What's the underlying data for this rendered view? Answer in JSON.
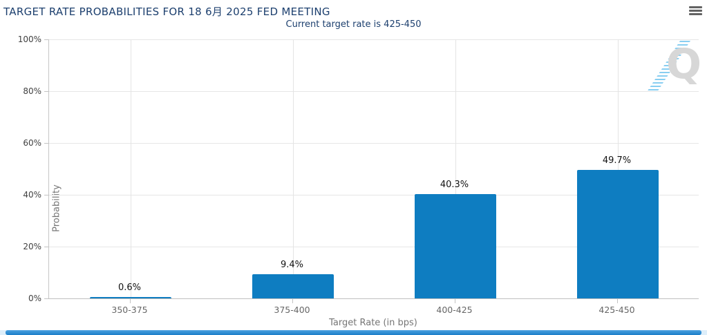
{
  "header": {
    "menu_icon": "hamburger-menu-icon"
  },
  "watermark": {
    "letter": "Q",
    "name": "quikstrike-logo"
  },
  "colors": {
    "title_text": "#1c3f6e",
    "bar": "#0e7dc1",
    "gridline": "#e6e6e6",
    "axis_line": "#c6c6c6",
    "x_tick_text": "#666666",
    "y_tick_text": "#3f3f3f",
    "axis_title_text": "#757575",
    "menu_icon": "#636363",
    "watermark_letter": "#d7d7d7",
    "watermark_stripes": "#82cbf0",
    "scrollbar_thumb": "#1b7ec7"
  },
  "chart_data": {
    "type": "bar",
    "title": "TARGET RATE PROBABILITIES FOR 18 6月 2025 FED MEETING",
    "subtitle": "Current target rate is 425-450",
    "categories": [
      "350-375",
      "375-400",
      "400-425",
      "425-450"
    ],
    "values": [
      0.6,
      9.4,
      40.3,
      49.7
    ],
    "point_labels": [
      "0.6%",
      "9.4%",
      "40.3%",
      "49.7%"
    ],
    "xlabel": "Target Rate (in bps)",
    "ylabel": "Probability",
    "ylim": [
      0,
      100
    ],
    "yticks": [
      0,
      20,
      40,
      60,
      80,
      100
    ],
    "ytick_labels": [
      "0%",
      "20%",
      "40%",
      "60%",
      "80%",
      "100%"
    ],
    "grid": true,
    "legend": false,
    "bar_color": "#0e7dc1"
  }
}
